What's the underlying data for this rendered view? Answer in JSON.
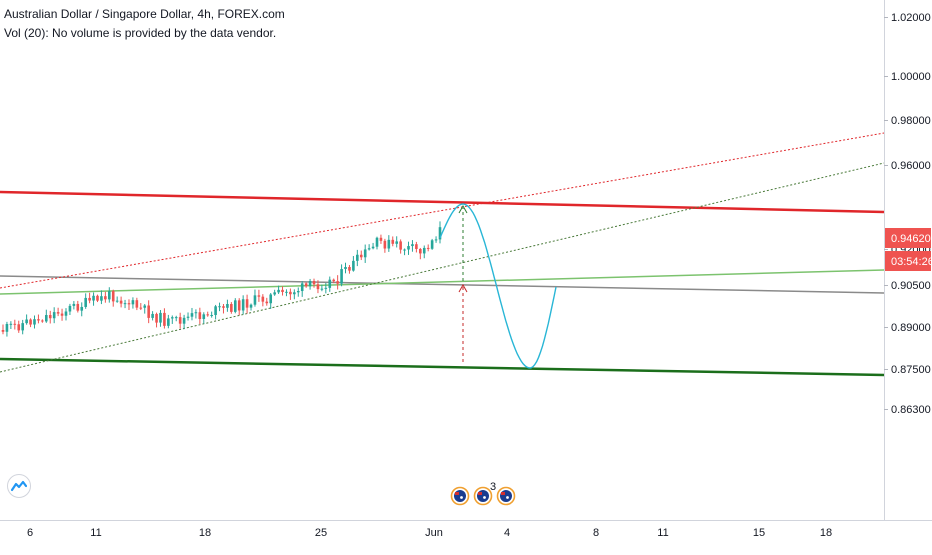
{
  "header": {
    "title": "Australian Dollar / Singapore Dollar, 4h, FOREX.com",
    "volume_note": "Vol (20): No volume is provided by the data vendor."
  },
  "chart_data": {
    "type": "candlestick",
    "price_axis": {
      "ticks": [
        "1.02000",
        "1.00000",
        "0.98000",
        "0.96000",
        "0.92000",
        "0.90500",
        "0.89000",
        "0.87500",
        "0.86300"
      ],
      "last_price": "0.94620",
      "countdown": "03:54:26"
    },
    "time_axis": {
      "ticks": [
        "6",
        "11",
        "18",
        "25",
        "Jun",
        "4",
        "8",
        "11",
        "15",
        "18"
      ]
    },
    "event_markers": [
      {
        "icon": "au-flag-icon",
        "count": ""
      },
      {
        "icon": "au-flag-icon",
        "count": "3"
      },
      {
        "icon": "au-flag-icon",
        "count": ""
      }
    ],
    "colors": {
      "up_candle": "#26a69a",
      "down_candle": "#ef5350",
      "resistance_line": "#e0262a",
      "support_line": "#1b6e1b",
      "mid_line_gray": "#8a8a8a",
      "mid_line_green": "#7cc36e",
      "projection_curve": "#29b6d6",
      "price_badge": "#ef5350"
    }
  }
}
